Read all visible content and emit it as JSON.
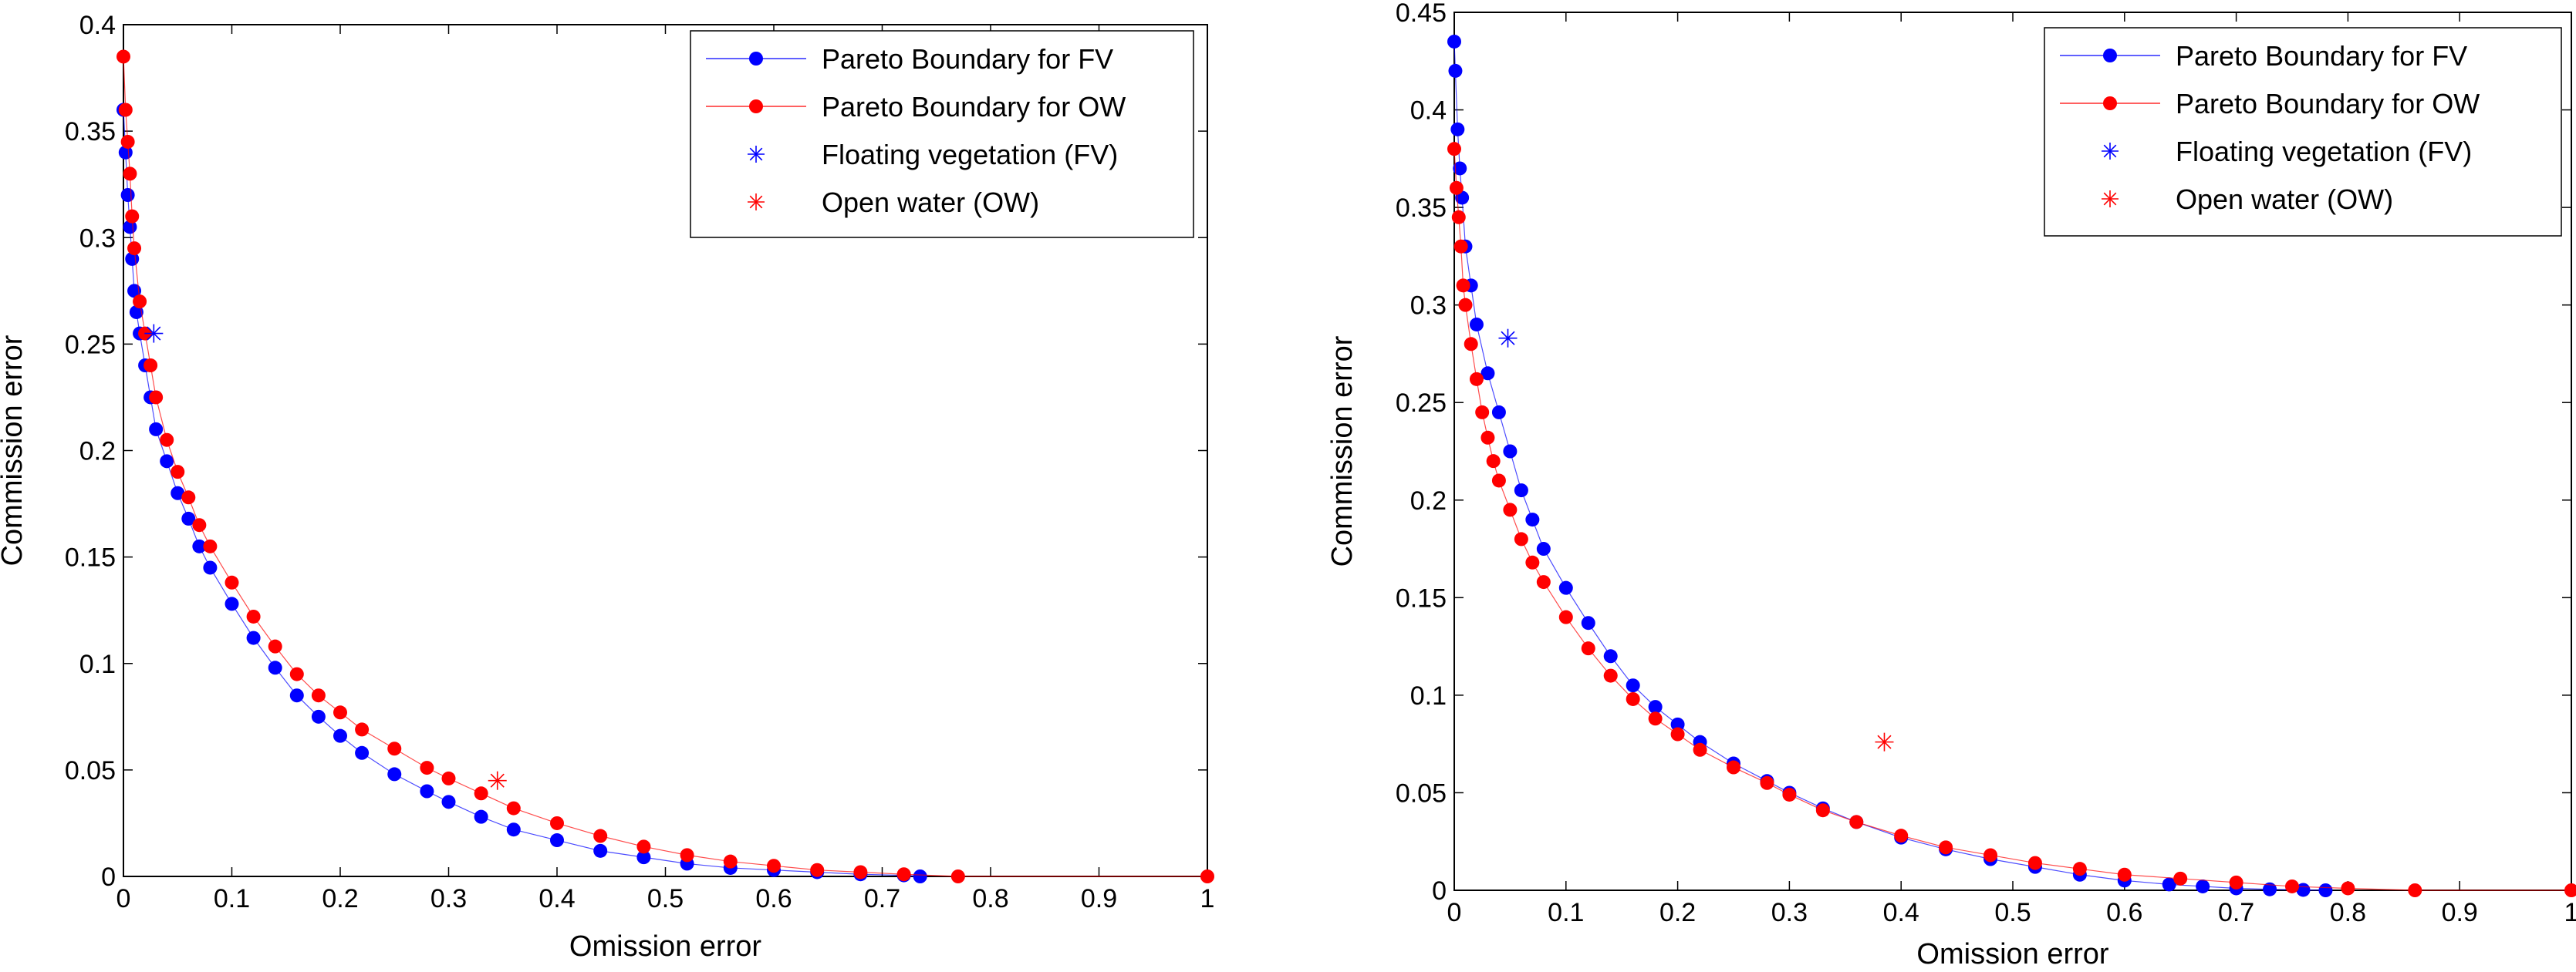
{
  "chart_data": [
    {
      "type": "scatter",
      "xlabel": "Omission error",
      "ylabel": "Commission error",
      "xlim": [
        0,
        1
      ],
      "ylim": [
        0,
        0.4
      ],
      "xticks": [
        "0",
        "0.1",
        "0.2",
        "0.3",
        "0.4",
        "0.5",
        "0.6",
        "0.7",
        "0.8",
        "0.9",
        "1"
      ],
      "yticks": [
        "0",
        "0.05",
        "0.1",
        "0.15",
        "0.2",
        "0.25",
        "0.3",
        "0.35",
        "0.4"
      ],
      "xtick_values": [
        0,
        0.1,
        0.2,
        0.3,
        0.4,
        0.5,
        0.6,
        0.7,
        0.8,
        0.9,
        1
      ],
      "ytick_values": [
        0,
        0.05,
        0.1,
        0.15,
        0.2,
        0.25,
        0.3,
        0.35,
        0.4
      ],
      "legend_position": "top-right",
      "legend": [
        "Pareto Boundary for FV",
        "Pareto Boundary for OW",
        "Floating vegetation (FV)",
        "Open water (OW)"
      ],
      "series": [
        {
          "name": "Pareto Boundary for FV",
          "color": "#0000ff",
          "kind": "line-dots",
          "x": [
            0,
            0.002,
            0.004,
            0.006,
            0.008,
            0.01,
            0.012,
            0.015,
            0.02,
            0.025,
            0.03,
            0.04,
            0.05,
            0.06,
            0.07,
            0.08,
            0.1,
            0.12,
            0.14,
            0.16,
            0.18,
            0.2,
            0.22,
            0.25,
            0.28,
            0.3,
            0.33,
            0.36,
            0.4,
            0.44,
            0.48,
            0.52,
            0.56,
            0.6,
            0.64,
            0.68,
            0.72,
            0.735
          ],
          "y": [
            0.36,
            0.34,
            0.32,
            0.305,
            0.29,
            0.275,
            0.265,
            0.255,
            0.24,
            0.225,
            0.21,
            0.195,
            0.18,
            0.168,
            0.155,
            0.145,
            0.128,
            0.112,
            0.098,
            0.085,
            0.075,
            0.066,
            0.058,
            0.048,
            0.04,
            0.035,
            0.028,
            0.022,
            0.017,
            0.012,
            0.009,
            0.006,
            0.004,
            0.003,
            0.002,
            0.001,
            0.0005,
            0
          ]
        },
        {
          "name": "Pareto Boundary for OW",
          "color": "#ff0000",
          "kind": "line-dots",
          "x": [
            0,
            0.002,
            0.004,
            0.006,
            0.008,
            0.01,
            0.015,
            0.02,
            0.025,
            0.03,
            0.04,
            0.05,
            0.06,
            0.07,
            0.08,
            0.1,
            0.12,
            0.14,
            0.16,
            0.18,
            0.2,
            0.22,
            0.25,
            0.28,
            0.3,
            0.33,
            0.36,
            0.4,
            0.44,
            0.48,
            0.52,
            0.56,
            0.6,
            0.64,
            0.68,
            0.72,
            0.77,
            1
          ],
          "y": [
            0.385,
            0.36,
            0.345,
            0.33,
            0.31,
            0.295,
            0.27,
            0.255,
            0.24,
            0.225,
            0.205,
            0.19,
            0.178,
            0.165,
            0.155,
            0.138,
            0.122,
            0.108,
            0.095,
            0.085,
            0.077,
            0.069,
            0.06,
            0.051,
            0.046,
            0.039,
            0.032,
            0.025,
            0.019,
            0.014,
            0.01,
            0.007,
            0.005,
            0.003,
            0.002,
            0.001,
            0,
            0
          ]
        },
        {
          "name": "Floating vegetation (FV)",
          "color": "#0000ff",
          "kind": "star",
          "x": [
            0.028
          ],
          "y": [
            0.255
          ]
        },
        {
          "name": "Open water (OW)",
          "color": "#ff0000",
          "kind": "star",
          "x": [
            0.345
          ],
          "y": [
            0.045
          ]
        }
      ]
    },
    {
      "type": "scatter",
      "xlabel": "Omission error",
      "ylabel": "Commission error",
      "xlim": [
        0,
        1
      ],
      "ylim": [
        0,
        0.45
      ],
      "xticks": [
        "0",
        "0.1",
        "0.2",
        "0.3",
        "0.4",
        "0.5",
        "0.6",
        "0.7",
        "0.8",
        "0.9",
        "1"
      ],
      "yticks": [
        "0",
        "0.05",
        "0.1",
        "0.15",
        "0.2",
        "0.25",
        "0.3",
        "0.35",
        "0.4",
        "0.45"
      ],
      "xtick_values": [
        0,
        0.1,
        0.2,
        0.3,
        0.4,
        0.5,
        0.6,
        0.7,
        0.8,
        0.9,
        1
      ],
      "ytick_values": [
        0,
        0.05,
        0.1,
        0.15,
        0.2,
        0.25,
        0.3,
        0.35,
        0.4,
        0.45
      ],
      "legend_position": "top-right",
      "legend": [
        "Pareto Boundary for FV",
        "Pareto Boundary for OW",
        "Floating vegetation (FV)",
        "Open water (OW)"
      ],
      "series": [
        {
          "name": "Pareto Boundary for FV",
          "color": "#0000ff",
          "kind": "line-dots",
          "x": [
            0,
            0.001,
            0.003,
            0.005,
            0.007,
            0.01,
            0.015,
            0.02,
            0.03,
            0.04,
            0.05,
            0.06,
            0.07,
            0.08,
            0.1,
            0.12,
            0.14,
            0.16,
            0.18,
            0.2,
            0.22,
            0.25,
            0.28,
            0.3,
            0.33,
            0.36,
            0.4,
            0.44,
            0.48,
            0.52,
            0.56,
            0.6,
            0.64,
            0.67,
            0.7,
            0.73,
            0.76,
            0.78
          ],
          "y": [
            0.435,
            0.42,
            0.39,
            0.37,
            0.355,
            0.33,
            0.31,
            0.29,
            0.265,
            0.245,
            0.225,
            0.205,
            0.19,
            0.175,
            0.155,
            0.137,
            0.12,
            0.105,
            0.094,
            0.085,
            0.076,
            0.065,
            0.056,
            0.05,
            0.042,
            0.035,
            0.027,
            0.021,
            0.016,
            0.012,
            0.008,
            0.005,
            0.003,
            0.002,
            0.001,
            0.0005,
            0.0002,
            0
          ]
        },
        {
          "name": "Pareto Boundary for OW",
          "color": "#ff0000",
          "kind": "line-dots",
          "x": [
            0,
            0.002,
            0.004,
            0.006,
            0.008,
            0.01,
            0.015,
            0.02,
            0.025,
            0.03,
            0.035,
            0.04,
            0.05,
            0.06,
            0.07,
            0.08,
            0.1,
            0.12,
            0.14,
            0.16,
            0.18,
            0.2,
            0.22,
            0.25,
            0.28,
            0.3,
            0.33,
            0.36,
            0.4,
            0.44,
            0.48,
            0.52,
            0.56,
            0.6,
            0.65,
            0.7,
            0.75,
            0.8,
            0.86,
            1
          ],
          "y": [
            0.38,
            0.36,
            0.345,
            0.33,
            0.31,
            0.3,
            0.28,
            0.262,
            0.245,
            0.232,
            0.22,
            0.21,
            0.195,
            0.18,
            0.168,
            0.158,
            0.14,
            0.124,
            0.11,
            0.098,
            0.088,
            0.08,
            0.072,
            0.063,
            0.055,
            0.049,
            0.041,
            0.035,
            0.028,
            0.022,
            0.018,
            0.014,
            0.011,
            0.008,
            0.006,
            0.004,
            0.002,
            0.001,
            0,
            0
          ]
        },
        {
          "name": "Floating vegetation (FV)",
          "color": "#0000ff",
          "kind": "star",
          "x": [
            0.048
          ],
          "y": [
            0.283
          ]
        },
        {
          "name": "Open water (OW)",
          "color": "#ff0000",
          "kind": "star",
          "x": [
            0.385
          ],
          "y": [
            0.076
          ]
        }
      ]
    }
  ]
}
